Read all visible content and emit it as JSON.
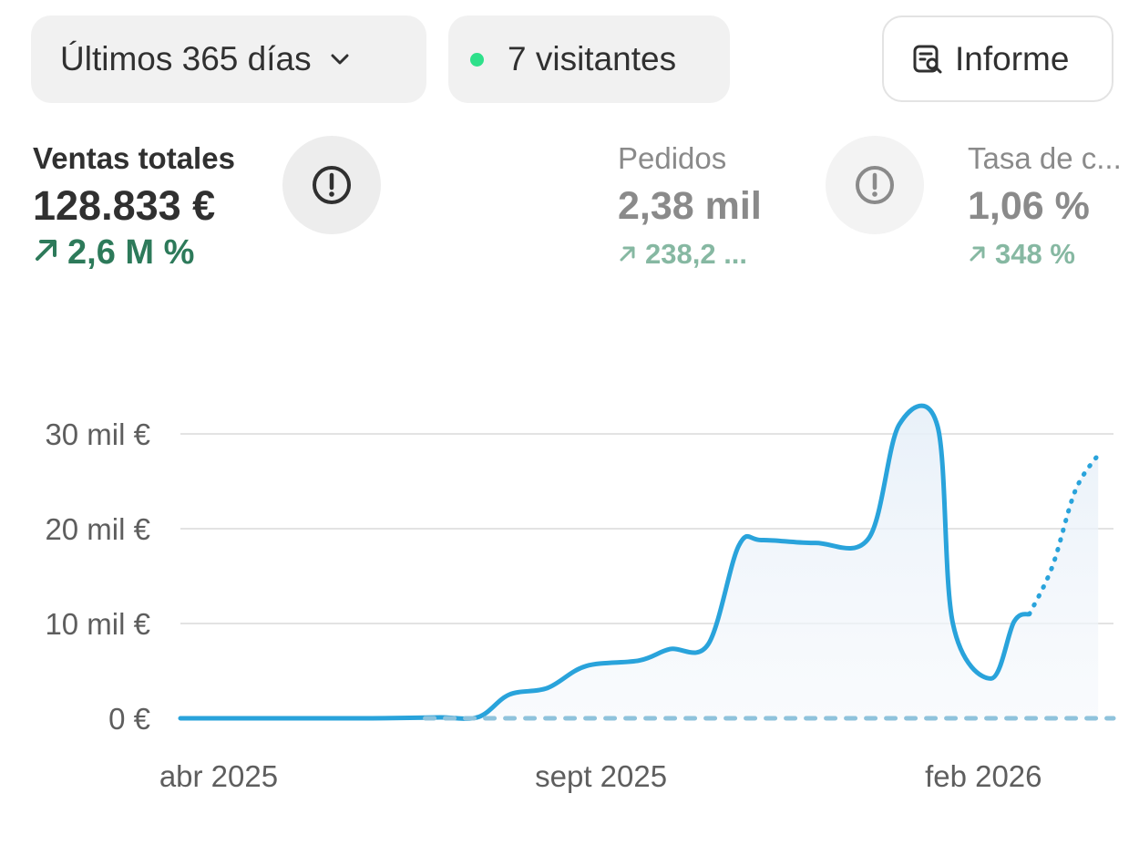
{
  "filters": {
    "date_range_label": "Últimos 365 días",
    "visitors_label": "7 visitantes",
    "live_dot_color": "#2ee08a",
    "report_label": "Informe",
    "report_icon": "report-search-icon"
  },
  "metrics": [
    {
      "label": "Ventas totales",
      "value": "128.833 €",
      "change": "2,6 M %",
      "icon": "arrow-up-right-icon",
      "info_icon": "info-icon"
    },
    {
      "label": "Pedidos",
      "value": "2,38 mil",
      "change": "238,2 ...",
      "icon": "arrow-up-right-icon",
      "info_icon": "info-icon"
    },
    {
      "label": "Tasa de c...",
      "value": "1,06 %",
      "change": "348 %",
      "icon": "arrow-up-right-icon"
    }
  ],
  "colors": {
    "accent_line": "#29a3db",
    "comparison_line": "#8fc3dc",
    "positive": "#2d7a5a",
    "positive_muted": "#86b8a2",
    "grid": "#e3e3e3"
  },
  "chart_data": {
    "type": "line",
    "title": "",
    "xlabel": "",
    "ylabel": "",
    "ylim": [
      0,
      30000
    ],
    "y_ticks": [
      {
        "value": 0,
        "label": "0 €"
      },
      {
        "value": 10000,
        "label": "10 mil €"
      },
      {
        "value": 20000,
        "label": "20 mil €"
      },
      {
        "value": 30000,
        "label": "30 mil €"
      }
    ],
    "x_ticks": [
      {
        "x": 0.5,
        "label": "abr 2025"
      },
      {
        "x": 5.5,
        "label": "sept 2025"
      },
      {
        "x": 10.5,
        "label": "feb 2026"
      }
    ],
    "x_range": [
      0,
      12.2
    ],
    "grid": true,
    "legend": "none",
    "series": [
      {
        "style": "solid-area",
        "x": [
          0,
          1,
          2,
          2.5,
          3,
          3.4,
          3.9,
          4.3,
          4.8,
          5.3,
          6,
          6.4,
          6.9,
          7.3,
          7.6,
          8.3,
          9,
          9.4,
          9.9,
          10.1,
          10.6,
          10.9,
          11.1
        ],
        "y": [
          0,
          0,
          0,
          0,
          50,
          100,
          150,
          2500,
          3200,
          5500,
          6100,
          7300,
          7800,
          18200,
          18800,
          18500,
          19000,
          31000,
          30800,
          10000,
          4200,
          10200,
          11000
        ]
      },
      {
        "style": "dotted-projection",
        "x": [
          11.1,
          11.4,
          11.7,
          12.0
        ],
        "y": [
          11000,
          16000,
          24000,
          27800
        ]
      },
      {
        "style": "dashed-comparison",
        "x": [
          3.2,
          12.2
        ],
        "y": [
          0,
          0
        ]
      }
    ]
  }
}
